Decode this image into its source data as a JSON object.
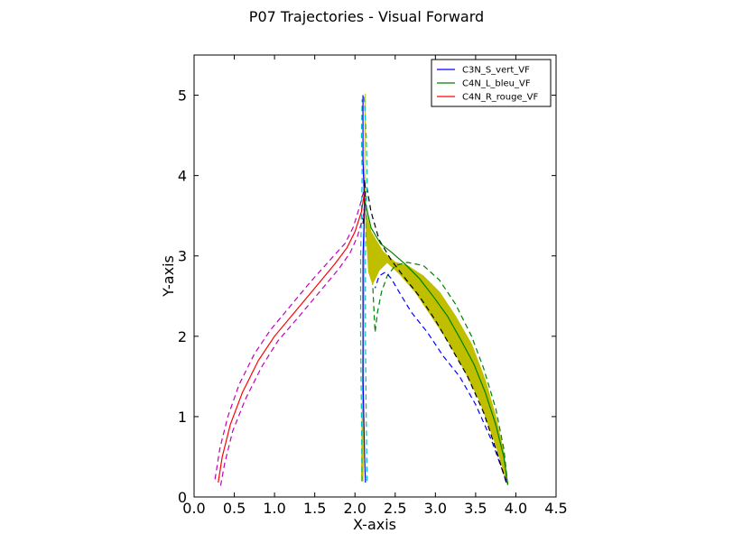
{
  "chart_data": {
    "type": "line",
    "title": "P07 Trajectories - Visual Forward",
    "xlabel": "X-axis",
    "ylabel": "Y-axis",
    "xlim": [
      0,
      4.5
    ],
    "ylim": [
      0,
      5.5
    ],
    "xticks": [
      "0.0",
      "0.5",
      "1.0",
      "1.5",
      "2.0",
      "2.5",
      "3.0",
      "3.5",
      "4.0",
      "4.5"
    ],
    "yticks": [
      "0",
      "1",
      "2",
      "3",
      "4",
      "5"
    ],
    "grid": false,
    "legend_position": "top-right",
    "colors": {
      "blue": "#0000ff",
      "green": "#008000",
      "red": "#ff0000",
      "cyan": "#00bfbf",
      "magenta": "#bf00bf",
      "olive": "#bfbf00",
      "black": "#000000"
    },
    "series": [
      {
        "name": "C3N_S_vert_VF",
        "color": "#0000ff",
        "x": [
          2.13,
          2.12,
          2.11,
          2.1,
          2.1,
          2.1,
          2.1,
          2.11,
          2.12,
          2.11,
          2.1,
          2.1,
          2.1,
          2.1
        ],
        "y": [
          0.18,
          0.5,
          1.0,
          1.5,
          2.0,
          2.5,
          3.0,
          3.3,
          3.6,
          3.9,
          4.2,
          4.5,
          4.8,
          5.0
        ]
      },
      {
        "name": "C4N_L_bleu_VF",
        "color": "#008000",
        "x": [
          3.9,
          3.85,
          3.75,
          3.62,
          3.48,
          3.32,
          3.15,
          2.97,
          2.8,
          2.62,
          2.45,
          2.32,
          2.2,
          2.12
        ],
        "y": [
          0.15,
          0.5,
          0.9,
          1.3,
          1.65,
          1.95,
          2.25,
          2.5,
          2.72,
          2.9,
          3.05,
          3.15,
          3.35,
          3.7
        ]
      },
      {
        "name": "C4N_R_rouge_VF",
        "color": "#ff0000",
        "x": [
          0.3,
          0.35,
          0.45,
          0.6,
          0.8,
          1.0,
          1.25,
          1.5,
          1.75,
          1.9,
          2.0,
          2.08,
          2.12
        ],
        "y": [
          0.18,
          0.5,
          0.9,
          1.3,
          1.7,
          2.0,
          2.3,
          2.6,
          2.9,
          3.1,
          3.3,
          3.55,
          3.8
        ]
      }
    ],
    "bands": [
      {
        "color": "#bfbf00",
        "upper_x": [
          2.12,
          2.2,
          2.35,
          2.5,
          2.65,
          2.85,
          3.05,
          3.25,
          3.45,
          3.62,
          3.75,
          3.85,
          3.9
        ],
        "upper_y": [
          3.6,
          3.3,
          3.05,
          2.92,
          2.88,
          2.75,
          2.55,
          2.25,
          1.9,
          1.45,
          1.0,
          0.55,
          0.15
        ],
        "lower_x": [
          3.9,
          3.75,
          3.55,
          3.35,
          3.15,
          2.95,
          2.75,
          2.55,
          2.4,
          2.3,
          2.22,
          2.17,
          2.14,
          2.12
        ],
        "lower_y": [
          0.15,
          0.65,
          1.2,
          1.6,
          1.95,
          2.25,
          2.55,
          2.78,
          2.92,
          2.82,
          2.65,
          2.8,
          3.3,
          4.1
        ]
      },
      {
        "color": "#bfbf00",
        "upper_x": [
          2.08,
          2.1,
          2.12,
          2.13
        ],
        "upper_y": [
          0.2,
          2.0,
          4.0,
          5.02
        ],
        "lower_x": [
          2.13,
          2.12,
          2.11,
          2.1
        ],
        "lower_y": [
          5.02,
          4.0,
          2.0,
          0.2
        ]
      }
    ],
    "dashed_bounds": [
      {
        "color": "#008000",
        "x": [
          3.9,
          3.85,
          3.75,
          3.6,
          3.45,
          3.25,
          3.05,
          2.85,
          2.65,
          2.5,
          2.4,
          2.33,
          2.28,
          2.25,
          2.22
        ],
        "y": [
          0.15,
          0.6,
          1.1,
          1.6,
          2.0,
          2.4,
          2.7,
          2.88,
          2.92,
          2.88,
          2.75,
          2.55,
          2.3,
          2.05,
          2.65
        ]
      },
      {
        "color": "#0000ff",
        "x": [
          3.88,
          3.7,
          3.5,
          3.3,
          3.1,
          2.9,
          2.7,
          2.55,
          2.45,
          2.38,
          2.3,
          2.25
        ],
        "y": [
          0.2,
          0.7,
          1.15,
          1.5,
          1.75,
          2.05,
          2.3,
          2.55,
          2.72,
          2.8,
          2.75,
          2.6
        ]
      },
      {
        "color": "#000000",
        "x": [
          3.88,
          3.75,
          3.6,
          3.4,
          3.2,
          3.0,
          2.8,
          2.6,
          2.45,
          2.3,
          2.2,
          2.14
        ],
        "y": [
          0.18,
          0.6,
          1.05,
          1.5,
          1.85,
          2.2,
          2.5,
          2.75,
          2.95,
          3.2,
          3.55,
          3.9
        ]
      },
      {
        "color": "#00bfbf",
        "x": [
          2.15,
          2.14,
          2.13,
          2.13,
          2.14,
          2.15,
          2.14,
          2.12,
          2.11
        ],
        "y": [
          0.2,
          1.0,
          2.0,
          3.0,
          3.5,
          4.0,
          4.5,
          4.9,
          5.0
        ]
      },
      {
        "color": "#00bfbf",
        "x": [
          2.09,
          2.08,
          2.07,
          2.07,
          2.08,
          2.09,
          2.08,
          2.09
        ],
        "y": [
          0.2,
          1.0,
          2.0,
          3.0,
          3.5,
          4.0,
          4.5,
          4.95
        ]
      },
      {
        "color": "#bf00bf",
        "x": [
          0.26,
          0.32,
          0.42,
          0.56,
          0.75,
          0.95,
          1.2,
          1.45,
          1.7,
          1.88,
          1.98,
          2.06,
          2.12
        ],
        "y": [
          0.22,
          0.6,
          1.0,
          1.4,
          1.78,
          2.08,
          2.38,
          2.68,
          2.96,
          3.16,
          3.36,
          3.62,
          3.85
        ]
      },
      {
        "color": "#bf00bf",
        "x": [
          0.33,
          0.38,
          0.48,
          0.64,
          0.84,
          1.04,
          1.3,
          1.55,
          1.8,
          1.94,
          2.03,
          2.1,
          2.13
        ],
        "y": [
          0.14,
          0.42,
          0.82,
          1.22,
          1.62,
          1.94,
          2.24,
          2.54,
          2.84,
          3.04,
          3.24,
          3.48,
          3.72
        ]
      },
      {
        "color": "#000000",
        "x": [
          2.1,
          2.12,
          2.13,
          2.12,
          2.11
        ],
        "y": [
          3.4,
          3.6,
          3.8,
          3.95,
          3.7
        ]
      }
    ]
  }
}
